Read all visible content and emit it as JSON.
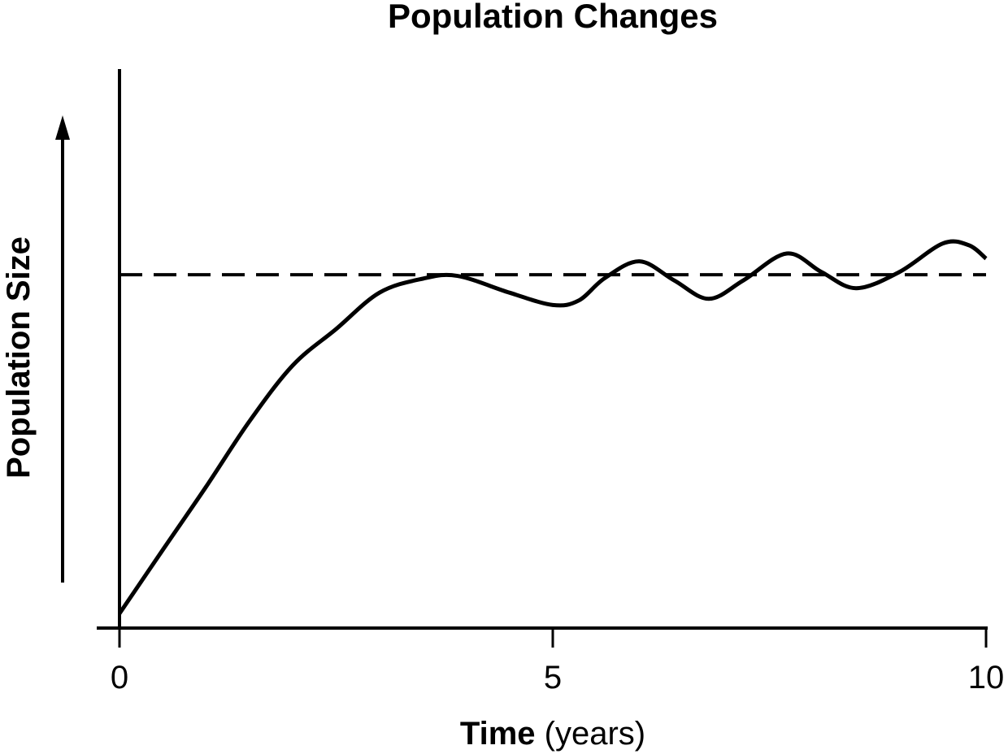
{
  "chart_data": {
    "type": "line",
    "title": "Population Changes",
    "xlabel": "Time",
    "xlabel_unit": "(years)",
    "ylabel": "Population Size",
    "x": [
      0,
      0.5,
      1,
      1.5,
      2,
      2.5,
      3,
      3.5,
      3.9,
      4.5,
      5,
      5.3,
      5.6,
      6,
      6.4,
      6.8,
      7.2,
      7.7,
      8.1,
      8.5,
      9,
      9.5,
      9.8,
      10
    ],
    "series": [
      {
        "color": "#000000",
        "values": [
          2.6,
          14,
          25.3,
          37,
          47,
          53.5,
          60,
          62.5,
          63,
          60,
          57.8,
          58.6,
          62.6,
          65.6,
          62.2,
          58.9,
          62.2,
          67,
          63.7,
          60.8,
          63.7,
          68.8,
          68.5,
          66.1
        ]
      }
    ],
    "hline": 63.2,
    "xlim": [
      0,
      10
    ],
    "xticks": [
      0,
      5,
      10
    ],
    "ylim": [
      0,
      100
    ]
  }
}
